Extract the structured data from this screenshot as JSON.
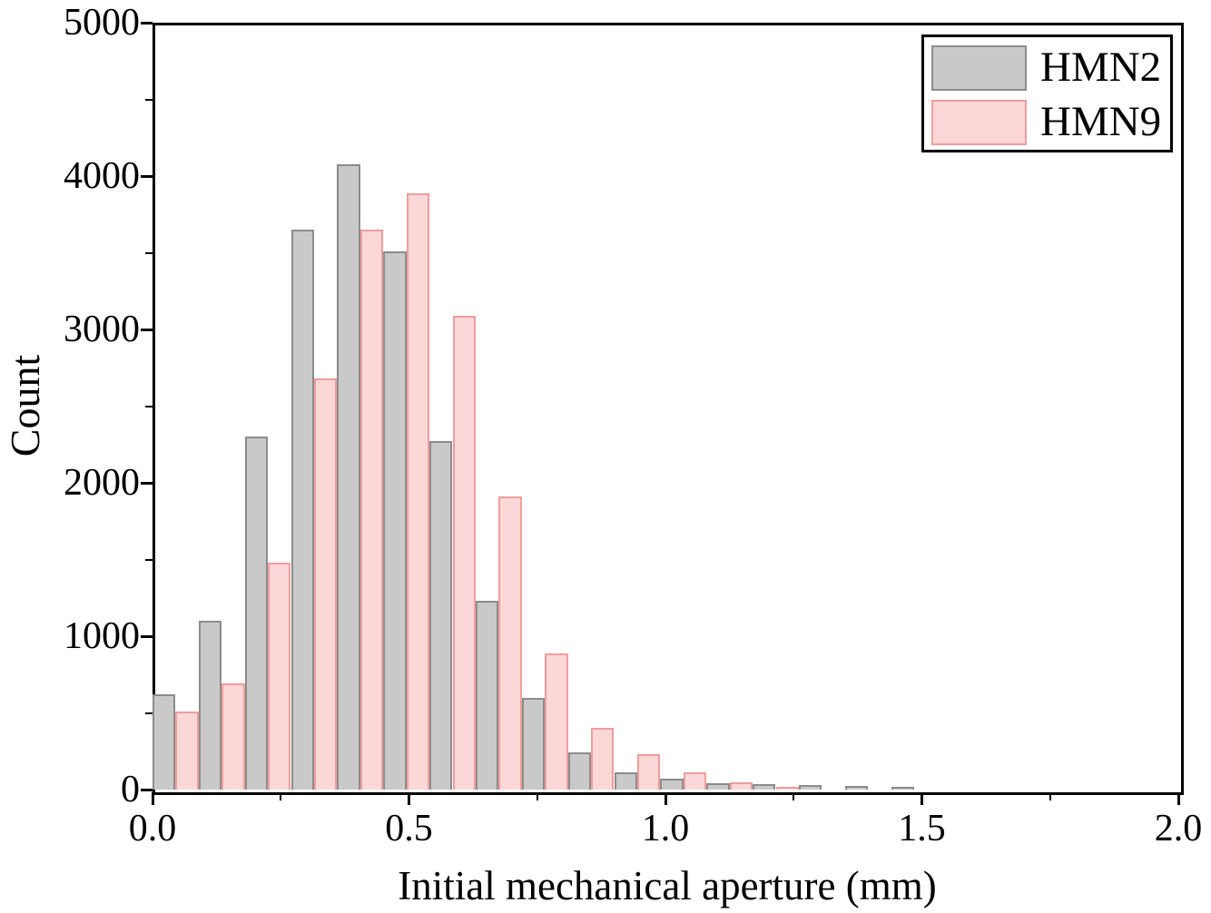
{
  "chart_data": {
    "type": "bar",
    "subtype": "interleaved-histogram",
    "title": "",
    "xlabel": "Initial mechanical aperture (mm)",
    "ylabel": "Count",
    "xlim": [
      0.0,
      2.0
    ],
    "ylim": [
      0,
      5000
    ],
    "x_major_ticks": [
      0.0,
      0.5,
      1.0,
      1.5,
      2.0
    ],
    "x_tick_labels": [
      "0.0",
      "0.5",
      "1.0",
      "1.5",
      "2.0"
    ],
    "x_minor_ticks": [
      0.25,
      0.75,
      1.25,
      1.75
    ],
    "y_major_ticks": [
      0,
      1000,
      2000,
      3000,
      4000,
      5000
    ],
    "y_tick_labels": [
      "0",
      "1000",
      "2000",
      "3000",
      "4000",
      "5000"
    ],
    "y_minor_ticks": [
      500,
      1500,
      2500,
      3500,
      4500
    ],
    "bin_pitch_mm": 0.09,
    "bar_width_mm": 0.045,
    "series": [
      {
        "name": "HMN2",
        "fill_color": "#c9c9c9",
        "border_color": "#8c8c8c",
        "offset_mm": 0.0,
        "bin_left_edges_mm": [
          0.0,
          0.09,
          0.18,
          0.27,
          0.36,
          0.45,
          0.54,
          0.63,
          0.72,
          0.81,
          0.9,
          0.99,
          1.08,
          1.17,
          1.26,
          1.35,
          1.44
        ],
        "values": [
          620,
          1100,
          2300,
          3650,
          4080,
          3510,
          2270,
          1230,
          600,
          240,
          110,
          70,
          40,
          35,
          30,
          25,
          18
        ]
      },
      {
        "name": "HMN9",
        "fill_color": "#fcd7d7",
        "border_color": "#f09d9d",
        "offset_mm": 0.045,
        "bin_left_edges_mm": [
          0.045,
          0.135,
          0.225,
          0.315,
          0.405,
          0.495,
          0.585,
          0.675,
          0.765,
          0.855,
          0.945,
          1.035,
          1.125,
          1.215,
          1.305,
          1.395,
          1.485
        ],
        "values": [
          510,
          690,
          1480,
          2680,
          3650,
          3890,
          3090,
          1910,
          890,
          400,
          230,
          115,
          50,
          15,
          0,
          0,
          0
        ]
      }
    ],
    "legend": {
      "position": "top-right",
      "entries": [
        "HMN2",
        "HMN9"
      ]
    },
    "axis_color": "#000000",
    "background_color": "#ffffff",
    "grid": false
  }
}
